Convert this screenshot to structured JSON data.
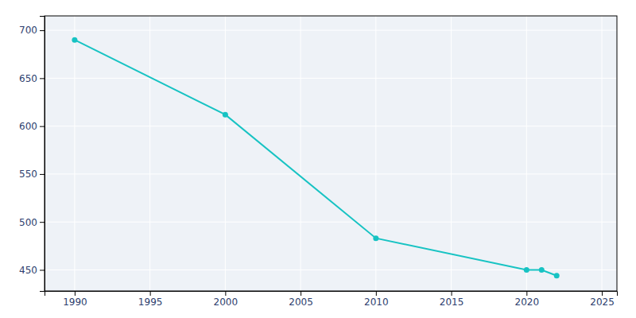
{
  "chart_data": {
    "type": "line",
    "x": [
      1990,
      2000,
      2010,
      2020,
      2021,
      2022
    ],
    "values": [
      690,
      612,
      483,
      450,
      450,
      444
    ],
    "color": "#17c3c3",
    "marker": "circle",
    "xlim": [
      1988,
      2026
    ],
    "ylim": [
      428,
      715
    ],
    "xticks": [
      1990,
      1995,
      2000,
      2005,
      2010,
      2015,
      2020,
      2025
    ],
    "yticks": [
      450,
      500,
      550,
      600,
      650,
      700
    ],
    "grid": true
  }
}
